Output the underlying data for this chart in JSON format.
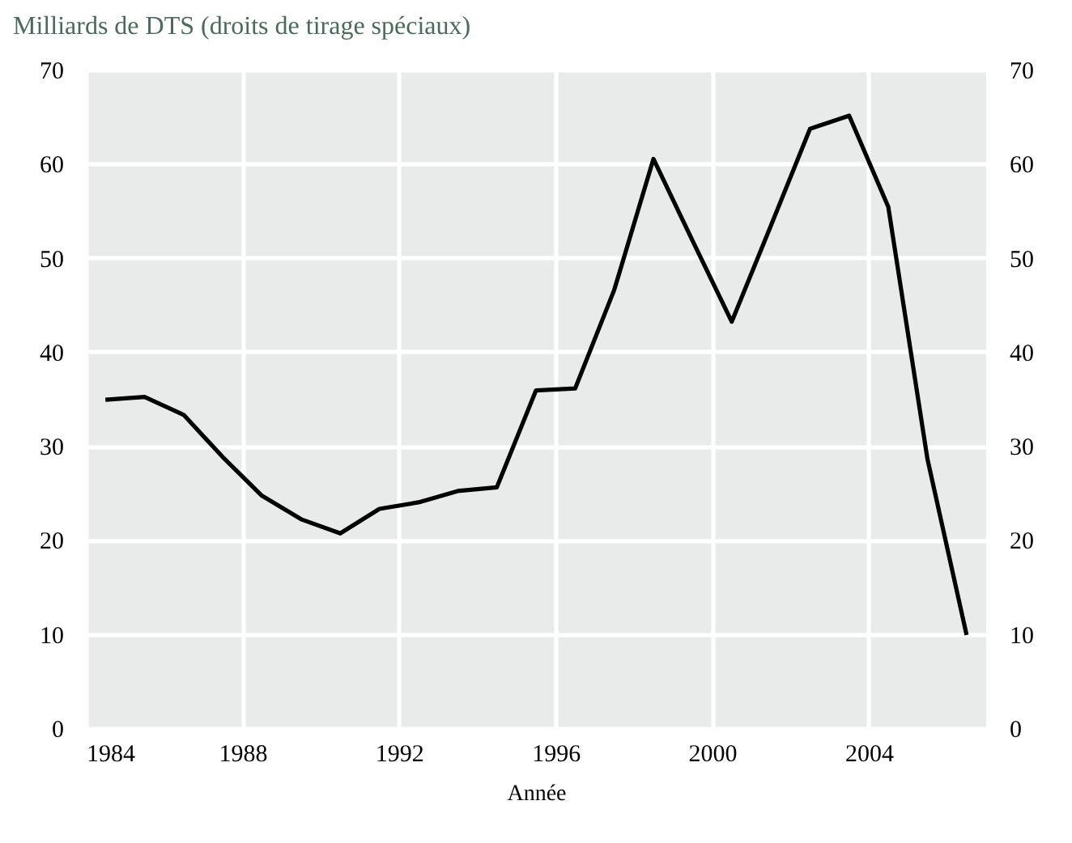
{
  "chart_data": {
    "type": "line",
    "title": "Milliards de DTS (droits de tirage spéciaux)",
    "xlabel": "Année",
    "x": [
      1984.5,
      1985.5,
      1986.5,
      1987.5,
      1988.5,
      1989.5,
      1990.5,
      1991.5,
      1992.5,
      1993.5,
      1994.5,
      1995.5,
      1996.5,
      1997.5,
      1998.5,
      1999.5,
      2000.5,
      2001.5,
      2002.5,
      2003.5,
      2004.5,
      2005.5,
      2006.5
    ],
    "series": [
      {
        "color": "#000000",
        "values": [
          34.9,
          35.2,
          33.3,
          28.8,
          24.7,
          22.2,
          20.7,
          23.3,
          24.0,
          25.2,
          25.6,
          35.9,
          36.1,
          46.6,
          60.5,
          51.8,
          43.2,
          53.4,
          63.7,
          65.1,
          55.4,
          28.6,
          9.9
        ]
      }
    ],
    "xlim": [
      1984,
      2007
    ],
    "xticks": [
      1984,
      1988,
      1992,
      1996,
      2000,
      2004
    ],
    "ylim": [
      0,
      70
    ],
    "yticks": [
      0,
      10,
      20,
      30,
      40,
      50,
      60,
      70
    ],
    "y2lim": [
      0,
      70
    ],
    "y2ticks": [
      0,
      10,
      20,
      30,
      40,
      50,
      60,
      70
    ],
    "grid": true,
    "marker": "none",
    "line_style": "solid"
  }
}
